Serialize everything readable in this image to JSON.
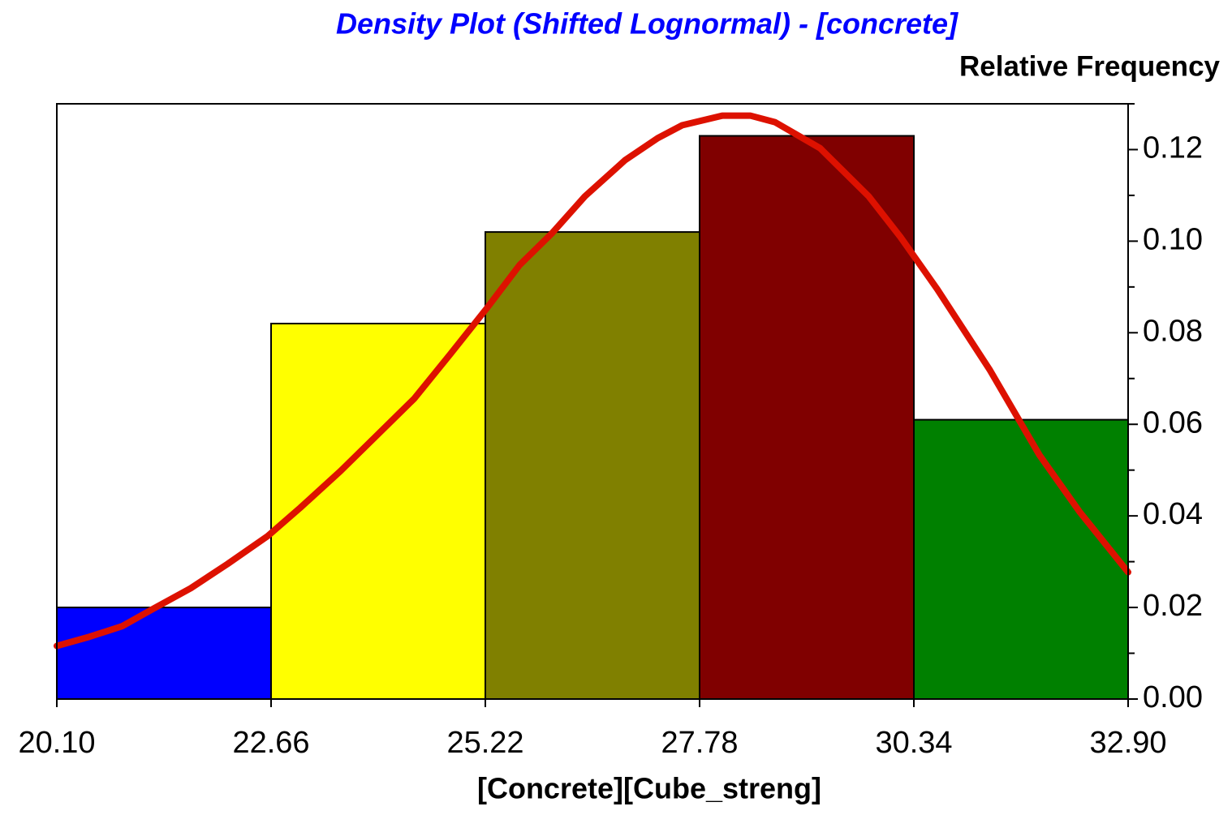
{
  "chart_data": {
    "type": "histogram",
    "title": "Density Plot (Shifted Lognormal) - [concrete]",
    "y_label": "Relative Frequency",
    "x_label": "[Concrete][Cube_streng]",
    "bins": [
      20.1,
      22.66,
      25.22,
      27.78,
      30.34,
      32.9
    ],
    "values": [
      0.02,
      0.082,
      0.102,
      0.123,
      0.061
    ],
    "colors": [
      "#0000ff",
      "#ffff00",
      "#808000",
      "#800000",
      "#008000"
    ],
    "curve": {
      "color": "#dd1100",
      "x": [
        20.1,
        20.49,
        20.88,
        21.26,
        21.7,
        22.14,
        22.62,
        23.01,
        23.49,
        23.88,
        24.37,
        24.8,
        25.24,
        25.63,
        26.02,
        26.41,
        26.89,
        27.28,
        27.57,
        28.05,
        28.39,
        28.68,
        29.22,
        29.8,
        30.18,
        30.62,
        31.25,
        31.84,
        32.32,
        32.9
      ],
      "y": [
        0.0116,
        0.0136,
        0.0159,
        0.0198,
        0.0242,
        0.0295,
        0.0356,
        0.0418,
        0.0498,
        0.0568,
        0.0656,
        0.0753,
        0.0854,
        0.0948,
        0.1018,
        0.1098,
        0.1177,
        0.1225,
        0.1253,
        0.1274,
        0.1274,
        0.126,
        0.1203,
        0.1098,
        0.1009,
        0.0895,
        0.0718,
        0.0533,
        0.0409,
        0.0277
      ]
    },
    "xlim": [
      20.1,
      32.9
    ],
    "xticks": [
      {
        "value": 20.1,
        "label": "20.10"
      },
      22.66,
      25.22,
      27.78,
      30.34,
      {
        "value": 32.9,
        "label": "32.90"
      }
    ],
    "ylim": [
      0,
      0.13
    ],
    "yticks": [
      {
        "value": 0,
        "label": "0.00"
      },
      0.02,
      0.04,
      0.06,
      0.08,
      {
        "value": 0.1,
        "label": "0.10"
      },
      0.12
    ],
    "minor_yticks": [
      0.01,
      0.03,
      0.05,
      0.07,
      0.09,
      0.11,
      0.13
    ]
  }
}
